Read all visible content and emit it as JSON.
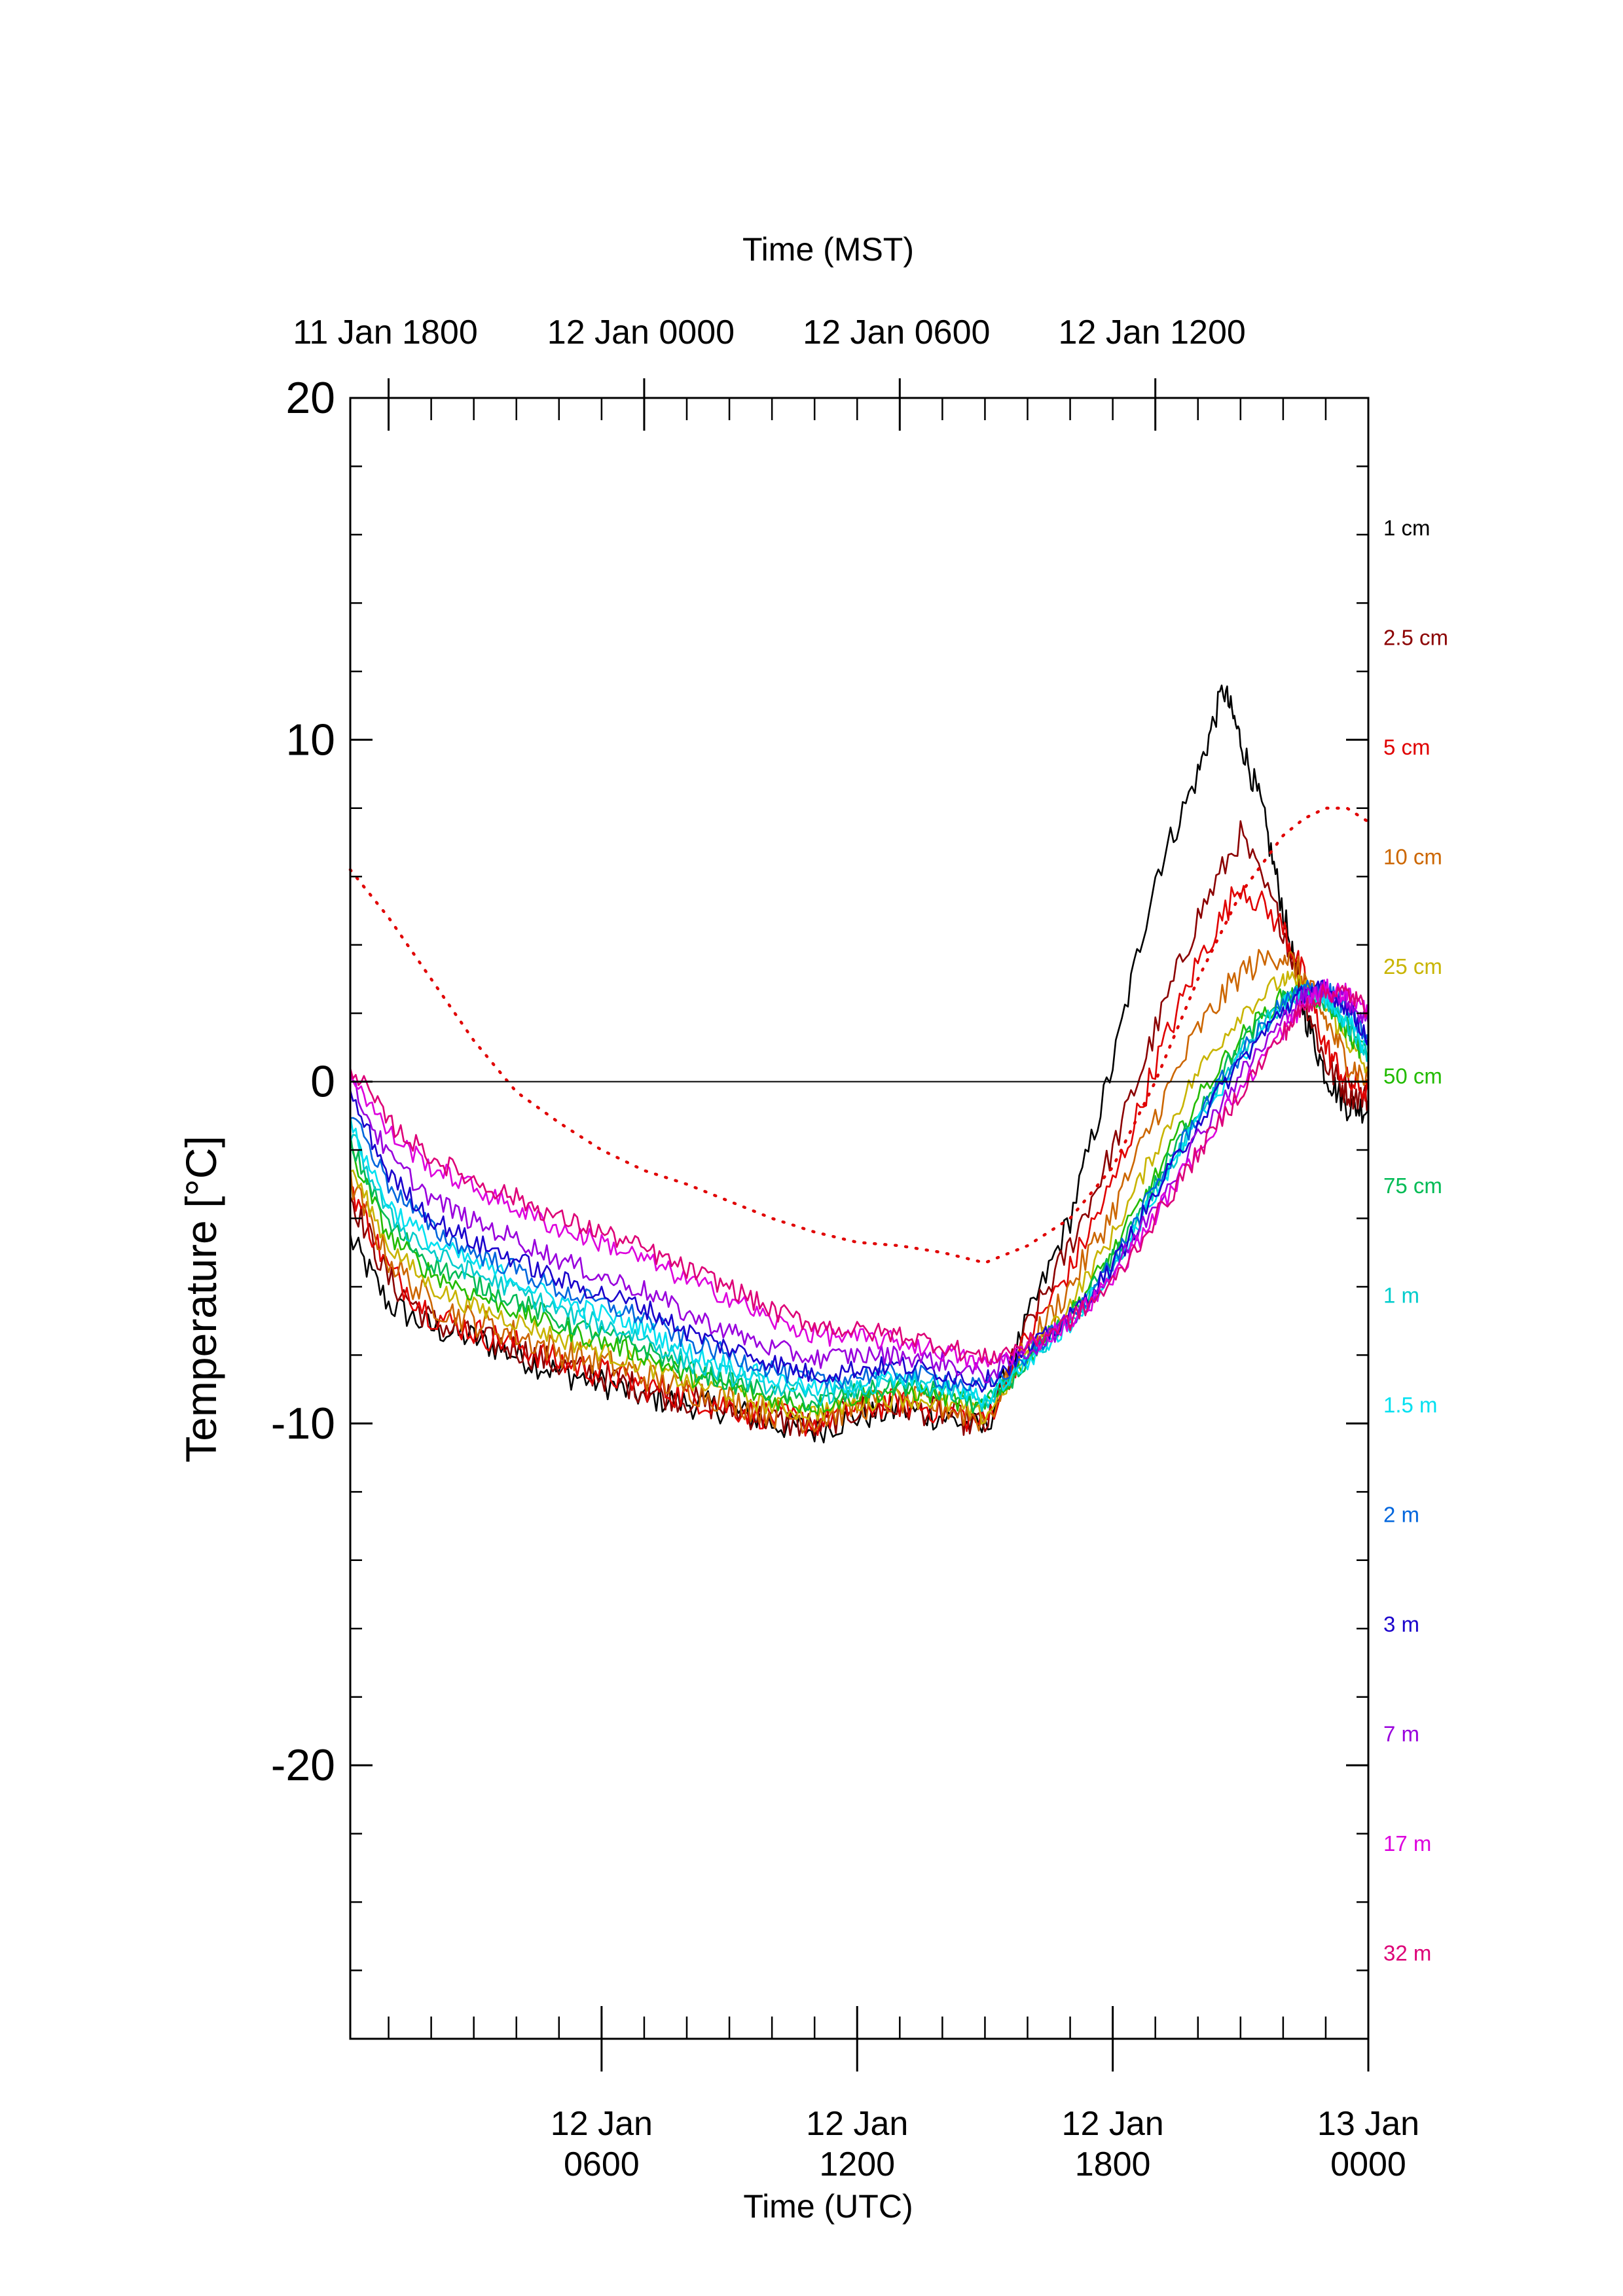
{
  "chart_data": {
    "type": "line",
    "top_axis": {
      "label": "Time (MST)",
      "ticks": [
        {
          "label": "11 Jan 1800",
          "x": -6
        },
        {
          "label": "12 Jan 0000",
          "x": 0
        },
        {
          "label": "12 Jan 0600",
          "x": 6
        },
        {
          "label": "12 Jan 1200",
          "x": 12
        }
      ]
    },
    "bottom_axis": {
      "label": "Time (UTC)",
      "ticks": [
        {
          "line1": "12 Jan",
          "line2": "0600",
          "x": -1
        },
        {
          "line1": "12 Jan",
          "line2": "1200",
          "x": 5
        },
        {
          "line1": "12 Jan",
          "line2": "1800",
          "x": 11
        },
        {
          "line1": "13 Jan",
          "line2": "0000",
          "x": 17
        }
      ]
    },
    "x_unit": "hours relative to 12 Jan 0000 MST",
    "xlim": [
      -6.9,
      17
    ],
    "ylabel": "Temperature [°C]",
    "ylim": [
      -28,
      20
    ],
    "yticks": [
      20,
      10,
      0,
      -10,
      -20
    ],
    "zero_line": true,
    "legend_position": "right",
    "legend": [
      {
        "label": "1 cm",
        "color": "#000000"
      },
      {
        "label": "2.5 cm",
        "color": "#8b0000"
      },
      {
        "label": "5 cm",
        "color": "#e00000"
      },
      {
        "label": "10 cm",
        "color": "#cc6600"
      },
      {
        "label": "25 cm",
        "color": "#c8b400"
      },
      {
        "label": "50 cm",
        "color": "#22bb00"
      },
      {
        "label": "75 cm",
        "color": "#00bb55"
      },
      {
        "label": "1 m",
        "color": "#00cccc"
      },
      {
        "label": "1.5 m",
        "color": "#00e0f0"
      },
      {
        "label": "2 m",
        "color": "#0066dd"
      },
      {
        "label": "3 m",
        "color": "#1a00cc"
      },
      {
        "label": "7 m",
        "color": "#9900dd"
      },
      {
        "label": "17 m",
        "color": "#dd00dd"
      },
      {
        "label": "32 m",
        "color": "#dd0077"
      }
    ],
    "series": [
      {
        "color": "#000000",
        "x": [
          -6.9,
          -6,
          -5,
          -4,
          -3,
          -2,
          -1,
          0,
          1,
          2,
          3,
          4,
          5,
          6,
          7,
          8,
          9,
          10,
          11,
          12,
          13,
          13.6,
          14,
          14.5,
          15,
          15.5,
          16,
          16.5,
          17
        ],
        "y": [
          -4.6,
          -6.5,
          -7.2,
          -7.5,
          -8.0,
          -8.5,
          -8.8,
          -9.2,
          -9.4,
          -9.6,
          -10.0,
          -10.2,
          -9.8,
          -9.6,
          -9.8,
          -10.2,
          -7.0,
          -4.0,
          0.5,
          6.0,
          9.0,
          11.5,
          10.0,
          8.0,
          5.0,
          2.0,
          0.2,
          -0.7,
          -0.8
        ]
      },
      {
        "color": "#8b0000",
        "x": [
          -6.9,
          -6,
          -5,
          -4,
          -3,
          -2,
          -1,
          0,
          1,
          2,
          3,
          4,
          5,
          6,
          7,
          8,
          9,
          10,
          11,
          12,
          13,
          14,
          15,
          15.5,
          16,
          16.5,
          17
        ],
        "y": [
          -3.3,
          -5.8,
          -7.0,
          -7.5,
          -7.8,
          -8.3,
          -8.6,
          -9.0,
          -9.3,
          -9.6,
          -9.9,
          -10.1,
          -9.6,
          -9.5,
          -9.7,
          -10.1,
          -7.2,
          -4.8,
          -2.0,
          1.5,
          4.8,
          7.2,
          4.5,
          2.5,
          0.5,
          -0.3,
          -0.5
        ]
      },
      {
        "color": "#e00000",
        "x": [
          -6.9,
          -6,
          -5,
          -4,
          -3,
          -2,
          -1,
          0,
          1,
          2,
          3,
          4,
          5,
          6,
          7,
          8,
          9,
          10,
          11,
          12,
          13,
          14,
          15,
          15.5,
          16,
          16.5,
          17
        ],
        "y": [
          -3.0,
          -5.5,
          -6.8,
          -7.3,
          -7.7,
          -8.2,
          -8.5,
          -8.9,
          -9.2,
          -9.5,
          -9.8,
          -10.0,
          -9.5,
          -9.4,
          -9.6,
          -10.0,
          -7.5,
          -5.5,
          -3.0,
          0.5,
          3.5,
          5.8,
          4.5,
          3.0,
          1.0,
          0.0,
          -0.3
        ]
      },
      {
        "color": "#cc6600",
        "x": [
          -6.9,
          -6,
          -5,
          -4,
          -3,
          -2,
          -1,
          0,
          1,
          2,
          3,
          4,
          5,
          6,
          7,
          8,
          9,
          10,
          11,
          12,
          13,
          14,
          15,
          15.5,
          16,
          16.5,
          17
        ],
        "y": [
          -2.9,
          -5.2,
          -6.5,
          -7.0,
          -7.4,
          -7.9,
          -8.2,
          -8.6,
          -9.0,
          -9.3,
          -9.7,
          -9.9,
          -9.5,
          -9.3,
          -9.5,
          -9.9,
          -7.8,
          -6.0,
          -3.8,
          -1.0,
          1.5,
          3.2,
          3.8,
          3.0,
          1.8,
          0.6,
          0.0
        ]
      },
      {
        "color": "#c8b400",
        "x": [
          -6.9,
          -6,
          -5,
          -4,
          -3,
          -2,
          -1,
          0,
          1,
          2,
          3,
          4,
          5,
          6,
          7,
          8,
          9,
          10,
          11,
          12,
          13,
          14,
          15,
          15.5,
          16,
          16.5,
          17
        ],
        "y": [
          -2.5,
          -4.8,
          -6.0,
          -6.6,
          -7.0,
          -7.5,
          -7.9,
          -8.3,
          -8.8,
          -9.1,
          -9.5,
          -9.7,
          -9.4,
          -9.2,
          -9.4,
          -9.8,
          -8.0,
          -6.5,
          -4.5,
          -2.0,
          0.3,
          2.0,
          3.0,
          2.8,
          2.2,
          1.2,
          0.3
        ]
      },
      {
        "color": "#22bb00",
        "x": [
          -6.9,
          -6,
          -5,
          -4,
          -3,
          -2,
          -1,
          0,
          1,
          2,
          3,
          4,
          5,
          6,
          7,
          8,
          9,
          10,
          11,
          12,
          13,
          14,
          15,
          15.5,
          16,
          16.5,
          17
        ],
        "y": [
          -2.0,
          -4.5,
          -5.6,
          -6.2,
          -6.7,
          -7.2,
          -7.6,
          -8.0,
          -8.6,
          -8.9,
          -9.3,
          -9.5,
          -9.2,
          -9.0,
          -9.2,
          -9.6,
          -8.1,
          -6.8,
          -5.0,
          -2.8,
          -0.5,
          1.3,
          2.5,
          2.6,
          2.3,
          1.5,
          0.6
        ]
      },
      {
        "color": "#00bb55",
        "x": [
          -6.9,
          -6,
          -5,
          -4,
          -3,
          -2,
          -1,
          0,
          1,
          2,
          3,
          4,
          5,
          6,
          7,
          8,
          9,
          10,
          11,
          12,
          13,
          14,
          15,
          15.5,
          16,
          16.5,
          17
        ],
        "y": [
          -1.8,
          -4.2,
          -5.3,
          -5.9,
          -6.4,
          -7.0,
          -7.4,
          -7.8,
          -8.4,
          -8.8,
          -9.1,
          -9.4,
          -9.1,
          -8.9,
          -9.1,
          -9.5,
          -8.2,
          -6.9,
          -5.2,
          -3.0,
          -0.8,
          1.1,
          2.4,
          2.6,
          2.3,
          1.6,
          0.7
        ]
      },
      {
        "color": "#00cccc",
        "x": [
          -6.9,
          -6,
          -5,
          -4,
          -3,
          -2,
          -1,
          0,
          1,
          2,
          3,
          4,
          5,
          6,
          7,
          8,
          9,
          10,
          11,
          12,
          13,
          14,
          15,
          15.5,
          16,
          16.5,
          17
        ],
        "y": [
          -1.5,
          -3.9,
          -5.0,
          -5.6,
          -6.1,
          -6.7,
          -7.1,
          -7.5,
          -8.2,
          -8.6,
          -8.9,
          -9.2,
          -9.0,
          -8.8,
          -9.0,
          -9.4,
          -8.2,
          -7.0,
          -5.4,
          -3.2,
          -1.0,
          0.9,
          2.3,
          2.6,
          2.4,
          1.7,
          0.8
        ]
      },
      {
        "color": "#00e0f0",
        "x": [
          -6.9,
          -6,
          -5,
          -4,
          -3,
          -2,
          -1,
          0,
          1,
          2,
          3,
          4,
          5,
          6,
          7,
          8,
          9,
          10,
          11,
          12,
          13,
          14,
          15,
          15.5,
          16,
          16.5,
          17
        ],
        "y": [
          -1.3,
          -3.6,
          -4.7,
          -5.3,
          -5.8,
          -6.4,
          -6.8,
          -7.2,
          -7.9,
          -8.3,
          -8.7,
          -9.0,
          -8.8,
          -8.7,
          -8.9,
          -9.3,
          -8.2,
          -7.1,
          -5.5,
          -3.3,
          -1.2,
          0.7,
          2.2,
          2.6,
          2.4,
          1.8,
          0.9
        ]
      },
      {
        "color": "#0066dd",
        "x": [
          -6.9,
          -6,
          -5,
          -4,
          -3,
          -2,
          -1,
          0,
          1,
          2,
          3,
          4,
          5,
          6,
          7,
          8,
          9,
          10,
          11,
          12,
          13,
          14,
          15,
          15.5,
          16,
          16.5,
          17
        ],
        "y": [
          -0.8,
          -3.0,
          -4.3,
          -5.0,
          -5.5,
          -6.1,
          -6.5,
          -6.9,
          -7.6,
          -8.0,
          -8.4,
          -8.8,
          -8.6,
          -8.5,
          -8.7,
          -9.0,
          -8.0,
          -6.9,
          -5.3,
          -3.1,
          -1.0,
          0.8,
          2.3,
          2.7,
          2.8,
          2.1,
          1.2
        ]
      },
      {
        "color": "#1a00cc",
        "x": [
          -6.9,
          -6,
          -5,
          -4,
          -3,
          -2,
          -1,
          0,
          1,
          2,
          3,
          4,
          5,
          6,
          7,
          8,
          9,
          10,
          11,
          12,
          13,
          14,
          15,
          15.5,
          16,
          16.5,
          17
        ],
        "y": [
          -0.4,
          -2.7,
          -4.0,
          -4.7,
          -5.2,
          -5.8,
          -6.2,
          -6.6,
          -7.3,
          -7.8,
          -8.2,
          -8.6,
          -8.4,
          -8.3,
          -8.5,
          -8.8,
          -7.9,
          -6.9,
          -5.4,
          -3.3,
          -1.2,
          0.6,
          2.1,
          2.6,
          2.7,
          2.2,
          1.3
        ]
      },
      {
        "color": "#9900dd",
        "x": [
          -6.9,
          -6,
          -5,
          -4,
          -3,
          -2,
          -1,
          0,
          1,
          2,
          3,
          4,
          5,
          6,
          7,
          8,
          9,
          10,
          11,
          12,
          13,
          14,
          15,
          15.5,
          16,
          16.5,
          17
        ],
        "y": [
          0.0,
          -2.2,
          -3.4,
          -4.1,
          -4.6,
          -5.2,
          -5.7,
          -6.1,
          -6.8,
          -7.3,
          -7.8,
          -8.1,
          -8.0,
          -8.0,
          -8.2,
          -8.6,
          -7.9,
          -7.0,
          -5.6,
          -3.6,
          -1.6,
          0.2,
          1.8,
          2.5,
          2.7,
          2.4,
          1.7
        ]
      },
      {
        "color": "#dd00dd",
        "x": [
          -6.9,
          -6,
          -5,
          -4,
          -3,
          -2,
          -1,
          0,
          1,
          2,
          3,
          4,
          5,
          6,
          7,
          8,
          9,
          10,
          11,
          12,
          13,
          14,
          15,
          15.5,
          16,
          16.5,
          17
        ],
        "y": [
          0.3,
          -1.5,
          -2.5,
          -3.1,
          -3.7,
          -4.3,
          -4.7,
          -5.2,
          -5.8,
          -6.3,
          -7.0,
          -7.4,
          -7.5,
          -7.6,
          -7.9,
          -8.3,
          -7.8,
          -7.0,
          -5.8,
          -3.9,
          -2.0,
          -0.2,
          1.5,
          2.3,
          2.7,
          2.6,
          2.0
        ]
      },
      {
        "color": "#dd0077",
        "x": [
          -6.9,
          -6,
          -5,
          -4,
          -3,
          -2,
          -1,
          0,
          1,
          2,
          3,
          4,
          5,
          6,
          7,
          8,
          9,
          10,
          11,
          12,
          13,
          14,
          15,
          15.5,
          16,
          16.5,
          17
        ],
        "y": [
          0.5,
          -1.2,
          -2.2,
          -2.9,
          -3.4,
          -4.0,
          -4.4,
          -4.9,
          -5.5,
          -6.0,
          -6.7,
          -7.1,
          -7.3,
          -7.4,
          -7.7,
          -8.1,
          -7.7,
          -7.0,
          -5.9,
          -4.0,
          -2.1,
          -0.3,
          1.4,
          2.2,
          2.6,
          2.6,
          2.1
        ]
      },
      {
        "color": "#e00000",
        "dotted": true,
        "x": [
          -6.9,
          -6,
          -5,
          -4,
          -3,
          -2,
          -1,
          0,
          1,
          2,
          3,
          4,
          5,
          6,
          7,
          8,
          9,
          10,
          11,
          12,
          13,
          14,
          15,
          15.5,
          16,
          16.5,
          17
        ],
        "y": [
          6.2,
          4.8,
          3.0,
          1.2,
          -0.3,
          -1.2,
          -2.0,
          -2.6,
          -3.0,
          -3.5,
          -4.0,
          -4.4,
          -4.7,
          -4.8,
          -5.0,
          -5.3,
          -4.8,
          -4.0,
          -2.5,
          0.0,
          3.0,
          5.5,
          7.2,
          7.7,
          8.0,
          8.0,
          7.6
        ]
      }
    ]
  }
}
